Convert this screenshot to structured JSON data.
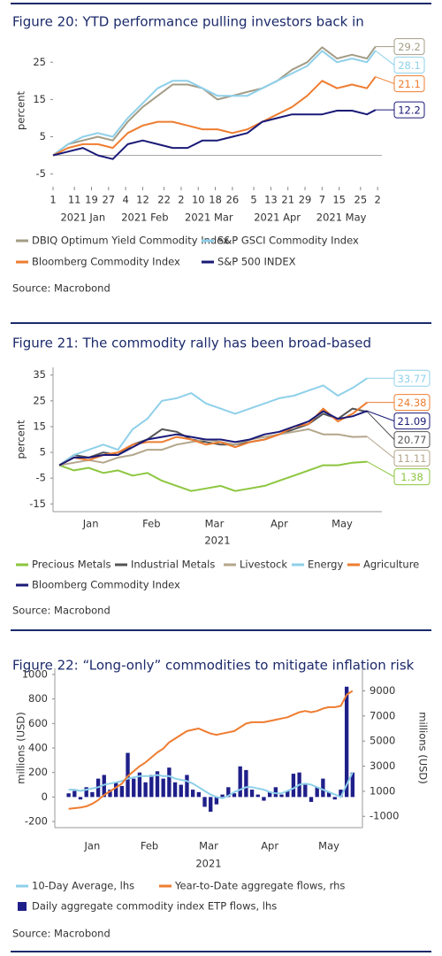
{
  "chart_data": [
    {
      "type": "line",
      "title": "Figure 20: YTD performance pulling investors back in",
      "ylabel": "percent",
      "source": "Source: Macrobond",
      "ylim": [
        -7,
        31
      ],
      "yticks": [
        -5,
        5,
        15,
        25
      ],
      "zero_line": true,
      "end_labels": true,
      "xlim": [
        "2021-01-01",
        "2021-06-04"
      ],
      "xticks": [
        {
          "value": "2021-01-01",
          "label": "1"
        },
        {
          "value": "2021-01-11",
          "label": "11"
        },
        {
          "value": "2021-01-19",
          "label": "19"
        },
        {
          "value": "2021-01-27",
          "label": "27"
        },
        {
          "value": "2021-02-04",
          "label": "4"
        },
        {
          "value": "2021-02-12",
          "label": "12"
        },
        {
          "value": "2021-02-22",
          "label": "22"
        },
        {
          "value": "2021-03-02",
          "label": "2"
        },
        {
          "value": "2021-03-10",
          "label": "10"
        },
        {
          "value": "2021-03-18",
          "label": "18"
        },
        {
          "value": "2021-03-26",
          "label": "26"
        },
        {
          "value": "2021-04-05",
          "label": "5"
        },
        {
          "value": "2021-04-13",
          "label": "13"
        },
        {
          "value": "2021-04-21",
          "label": "21"
        },
        {
          "value": "2021-04-29",
          "label": "29"
        },
        {
          "value": "2021-05-07",
          "label": "7"
        },
        {
          "value": "2021-05-15",
          "label": "15"
        },
        {
          "value": "2021-05-25",
          "label": "25"
        },
        {
          "value": "2021-06-02",
          "label": "2"
        }
      ],
      "xgroups": [
        {
          "value": "2021-01-15",
          "label": "2021 Jan"
        },
        {
          "value": "2021-02-13",
          "label": "2021 Feb"
        },
        {
          "value": "2021-03-15",
          "label": "2021 Mar"
        },
        {
          "value": "2021-04-16",
          "label": "2021 Apr"
        },
        {
          "value": "2021-05-16",
          "label": "2021 May"
        }
      ],
      "x": [
        "2021-01-01",
        "2021-01-08",
        "2021-01-15",
        "2021-01-22",
        "2021-01-29",
        "2021-02-05",
        "2021-02-12",
        "2021-02-19",
        "2021-02-26",
        "2021-03-05",
        "2021-03-12",
        "2021-03-19",
        "2021-03-26",
        "2021-04-02",
        "2021-04-09",
        "2021-04-16",
        "2021-04-23",
        "2021-04-30",
        "2021-05-07",
        "2021-05-14",
        "2021-05-21",
        "2021-05-28",
        "2021-06-01"
      ],
      "series": [
        {
          "name": "DBIQ Optimum Yield Commodity Index",
          "color": "#a39c86",
          "values": [
            0,
            3,
            4,
            5,
            4,
            9,
            13,
            16,
            19,
            19,
            18,
            15,
            16,
            17,
            18,
            20,
            23,
            25,
            29,
            26,
            27,
            26,
            29.2
          ]
        },
        {
          "name": "S&P GSCI Commodity Index",
          "color": "#8fd0ea",
          "values": [
            0,
            3,
            5,
            6,
            5,
            10,
            14,
            18,
            20,
            20,
            18,
            16,
            16,
            16,
            18,
            20,
            22,
            24,
            28,
            25,
            26,
            25,
            28.1
          ]
        },
        {
          "name": "Bloomberg Commodity Index",
          "color": "#ee7d31",
          "values": [
            0,
            2,
            3,
            3,
            2,
            6,
            8,
            9,
            9,
            8,
            7,
            7,
            6,
            7,
            9,
            11,
            13,
            16,
            20,
            18,
            19,
            18,
            21.1
          ]
        },
        {
          "name": "S&P 500 INDEX",
          "color": "#1a1a78",
          "values": [
            0,
            1,
            2,
            0,
            -1,
            3,
            4,
            3,
            2,
            2,
            4,
            4,
            5,
            6,
            9,
            10,
            11,
            11,
            11,
            12,
            12,
            11,
            12.2
          ]
        }
      ]
    },
    {
      "type": "line",
      "title": "Figure 21: The commodity rally has been broad-based",
      "ylabel": "percent",
      "xlabel": "2021",
      "source": "Source: Macrobond",
      "ylim": [
        -18,
        38
      ],
      "yticks": [
        -15,
        -5,
        5,
        15,
        25,
        35
      ],
      "axis_line": true,
      "end_labels": true,
      "xlim": [
        "2020-12-29",
        "2021-06-04"
      ],
      "xticks": [
        {
          "value": "2021-01-16",
          "label": "Jan"
        },
        {
          "value": "2021-02-14",
          "label": "Feb"
        },
        {
          "value": "2021-03-16",
          "label": "Mar"
        },
        {
          "value": "2021-04-16",
          "label": "Apr"
        },
        {
          "value": "2021-05-16",
          "label": "May"
        }
      ],
      "x": [
        "2021-01-01",
        "2021-01-08",
        "2021-01-15",
        "2021-01-22",
        "2021-01-29",
        "2021-02-05",
        "2021-02-12",
        "2021-02-19",
        "2021-02-26",
        "2021-03-05",
        "2021-03-12",
        "2021-03-19",
        "2021-03-26",
        "2021-04-02",
        "2021-04-09",
        "2021-04-16",
        "2021-04-23",
        "2021-04-30",
        "2021-05-07",
        "2021-05-14",
        "2021-05-21",
        "2021-05-28"
      ],
      "series": [
        {
          "name": "Precious Metals",
          "color": "#8cc63f",
          "values": [
            0,
            -2,
            -1,
            -3,
            -2,
            -4,
            -3,
            -6,
            -8,
            -10,
            -9,
            -8,
            -10,
            -9,
            -8,
            -6,
            -4,
            -2,
            0,
            0,
            1,
            1.38
          ]
        },
        {
          "name": "Industrial Metals",
          "color": "#555555",
          "values": [
            0,
            4,
            3,
            5,
            4,
            8,
            10,
            14,
            13,
            10,
            9,
            8,
            8,
            9,
            10,
            12,
            14,
            16,
            20,
            18,
            22,
            20.77
          ]
        },
        {
          "name": "Livestock",
          "color": "#b3a68c",
          "values": [
            0,
            1,
            2,
            1,
            3,
            4,
            6,
            6,
            8,
            9,
            10,
            9,
            8,
            10,
            11,
            12,
            13,
            14,
            12,
            12,
            11,
            11.11
          ]
        },
        {
          "name": "Energy",
          "color": "#8fd0ea",
          "values": [
            0,
            4,
            6,
            8,
            6,
            14,
            18,
            25,
            26,
            28,
            24,
            22,
            20,
            22,
            24,
            26,
            27,
            29,
            31,
            27,
            30,
            33.77
          ]
        },
        {
          "name": "Agriculture",
          "color": "#ee7d31",
          "values": [
            0,
            3,
            2,
            4,
            5,
            8,
            9,
            9,
            11,
            10,
            8,
            9,
            7,
            9,
            10,
            12,
            15,
            16,
            22,
            17,
            20,
            24.38
          ]
        },
        {
          "name": "Bloomberg Commodity Index",
          "color": "#1a1a78",
          "values": [
            0,
            3,
            3,
            4,
            4,
            7,
            10,
            11,
            12,
            11,
            10,
            10,
            9,
            10,
            12,
            13,
            15,
            17,
            21,
            18,
            19,
            21.09
          ]
        }
      ]
    },
    {
      "type": "bar_line",
      "title": "Figure 22: “Long-only” commodities to mitigate inflation risk",
      "ylabel": "millions (USD)",
      "y2label": "millions (USD)",
      "xlabel": "2021",
      "source": "Source: Macrobond",
      "ylim": [
        -250,
        1050
      ],
      "yticks": [
        -200,
        0,
        200,
        400,
        600,
        800,
        1000
      ],
      "y2lim": [
        -1900,
        10800
      ],
      "y2ticks": [
        -1000,
        1000,
        3000,
        5000,
        7000,
        9000
      ],
      "axis_line": true,
      "xlim": [
        "2020-12-28",
        "2021-06-02"
      ],
      "xticks": [
        {
          "value": "2021-01-16",
          "label": "Jan"
        },
        {
          "value": "2021-02-14",
          "label": "Feb"
        },
        {
          "value": "2021-03-16",
          "label": "Mar"
        },
        {
          "value": "2021-04-16",
          "label": "Apr"
        },
        {
          "value": "2021-05-16",
          "label": "May"
        }
      ],
      "x": [
        "2021-01-04",
        "2021-01-07",
        "2021-01-10",
        "2021-01-13",
        "2021-01-16",
        "2021-01-19",
        "2021-01-22",
        "2021-01-25",
        "2021-01-28",
        "2021-01-31",
        "2021-02-03",
        "2021-02-06",
        "2021-02-09",
        "2021-02-12",
        "2021-02-15",
        "2021-02-18",
        "2021-02-21",
        "2021-02-24",
        "2021-02-27",
        "2021-03-02",
        "2021-03-05",
        "2021-03-08",
        "2021-03-11",
        "2021-03-14",
        "2021-03-17",
        "2021-03-20",
        "2021-03-23",
        "2021-03-26",
        "2021-03-29",
        "2021-04-01",
        "2021-04-04",
        "2021-04-07",
        "2021-04-10",
        "2021-04-13",
        "2021-04-16",
        "2021-04-19",
        "2021-04-22",
        "2021-04-25",
        "2021-04-28",
        "2021-05-01",
        "2021-05-04",
        "2021-05-07",
        "2021-05-10",
        "2021-05-13",
        "2021-05-16",
        "2021-05-19",
        "2021-05-22",
        "2021-05-25",
        "2021-05-28"
      ],
      "series": [
        {
          "name": "Daily aggregate commodity index ETP flows, lhs",
          "type": "bar",
          "color": "#1f1f8a",
          "values": [
            30,
            50,
            -20,
            80,
            40,
            150,
            180,
            60,
            120,
            90,
            360,
            150,
            200,
            120,
            180,
            210,
            150,
            240,
            120,
            100,
            180,
            60,
            40,
            -80,
            -120,
            -60,
            20,
            80,
            30,
            250,
            220,
            60,
            20,
            -30,
            40,
            80,
            20,
            50,
            190,
            200,
            100,
            -40,
            80,
            150,
            40,
            -20,
            60,
            900,
            200
          ]
        },
        {
          "name": "10-Day Average, lhs",
          "type": "line",
          "color": "#8fd0ea",
          "values": [
            60,
            60,
            50,
            60,
            70,
            80,
            100,
            110,
            120,
            130,
            150,
            160,
            170,
            170,
            170,
            180,
            170,
            170,
            150,
            140,
            130,
            110,
            80,
            50,
            20,
            0,
            -10,
            10,
            40,
            60,
            80,
            80,
            70,
            60,
            40,
            30,
            30,
            50,
            70,
            100,
            110,
            100,
            80,
            60,
            40,
            20,
            0,
            100,
            200
          ]
        },
        {
          "name": "Year-to-Date aggregate flows, rhs",
          "type": "line",
          "axis": "y2",
          "color": "#ee7d31",
          "values": [
            -400,
            -350,
            -300,
            -200,
            0,
            300,
            700,
            1000,
            1300,
            1600,
            2200,
            2600,
            3000,
            3300,
            3700,
            4100,
            4400,
            4900,
            5200,
            5500,
            5800,
            5900,
            6000,
            5800,
            5600,
            5500,
            5600,
            5700,
            5800,
            6100,
            6400,
            6500,
            6500,
            6500,
            6600,
            6700,
            6800,
            6900,
            7100,
            7300,
            7400,
            7300,
            7400,
            7600,
            7700,
            7700,
            7800,
            8700,
            9000
          ]
        }
      ]
    }
  ]
}
